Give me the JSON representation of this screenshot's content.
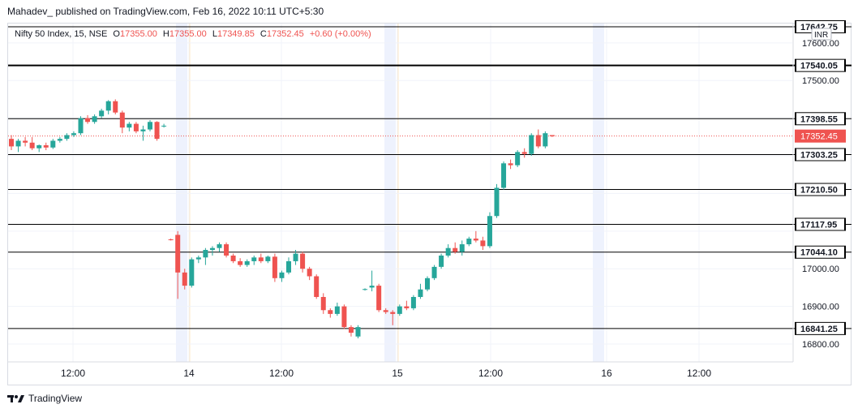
{
  "header": {
    "publisher": "Mahadev_ published on TradingView.com, Feb 16, 2022 10:11 UTC+5:30"
  },
  "legend": {
    "symbol": "Nifty 50 Index, 15, NSE",
    "o_label": "O",
    "o_value": "17355.00",
    "h_label": "H",
    "h_value": "17355.00",
    "l_label": "L",
    "l_value": "17349.85",
    "c_label": "C",
    "c_value": "17352.45",
    "change": "+0.60 (+0.00%)"
  },
  "currency": "INR",
  "footer": {
    "brand": "TradingView"
  },
  "colors": {
    "up": "#26a69a",
    "down": "#ef5350",
    "line": "#000000",
    "text": "#131722"
  },
  "chart_data": {
    "type": "candlestick",
    "y_ticks": [
      17600.0,
      17500.0,
      17400.0,
      17300.0,
      17200.0,
      17100.0,
      17000.0,
      16900.0,
      16800.0
    ],
    "y_tick_labels": [
      "17600.00",
      "17500.00",
      "17000.00",
      "16900.00",
      "16800.00"
    ],
    "ylim": [
      16770,
      17680
    ],
    "x_tick_labels": [
      "12:00",
      "14",
      "12:00",
      "15",
      "12:00",
      "16",
      "12:00"
    ],
    "horizontal_levels": [
      {
        "value": 17642.75,
        "label": "17642.75"
      },
      {
        "value": 17540.05,
        "label": "17540.05"
      },
      {
        "value": 17398.55,
        "label": "17398.55"
      },
      {
        "value": 17303.25,
        "label": "17303.25"
      },
      {
        "value": 17210.5,
        "label": "17210.50"
      },
      {
        "value": 17117.95,
        "label": "17117.95"
      },
      {
        "value": 17044.1,
        "label": "17044.10"
      },
      {
        "value": 16841.25,
        "label": "16841.25"
      }
    ],
    "last_price": {
      "value": 17352.45,
      "label": "17352.45"
    },
    "session_markers": [
      "14",
      "15",
      "16"
    ],
    "candles": [
      {
        "o": 17345,
        "h": 17355,
        "l": 17315,
        "c": 17325
      },
      {
        "o": 17325,
        "h": 17345,
        "l": 17310,
        "c": 17340
      },
      {
        "o": 17340,
        "h": 17350,
        "l": 17325,
        "c": 17335
      },
      {
        "o": 17335,
        "h": 17350,
        "l": 17315,
        "c": 17320
      },
      {
        "o": 17320,
        "h": 17330,
        "l": 17310,
        "c": 17328
      },
      {
        "o": 17328,
        "h": 17335,
        "l": 17315,
        "c": 17322
      },
      {
        "o": 17322,
        "h": 17345,
        "l": 17318,
        "c": 17340
      },
      {
        "o": 17340,
        "h": 17350,
        "l": 17335,
        "c": 17345
      },
      {
        "o": 17345,
        "h": 17360,
        "l": 17340,
        "c": 17355
      },
      {
        "o": 17355,
        "h": 17365,
        "l": 17350,
        "c": 17360
      },
      {
        "o": 17360,
        "h": 17405,
        "l": 17355,
        "c": 17400
      },
      {
        "o": 17400,
        "h": 17408,
        "l": 17385,
        "c": 17390
      },
      {
        "o": 17390,
        "h": 17410,
        "l": 17385,
        "c": 17405
      },
      {
        "o": 17405,
        "h": 17425,
        "l": 17400,
        "c": 17420
      },
      {
        "o": 17420,
        "h": 17448,
        "l": 17410,
        "c": 17445
      },
      {
        "o": 17445,
        "h": 17450,
        "l": 17410,
        "c": 17415
      },
      {
        "o": 17415,
        "h": 17420,
        "l": 17360,
        "c": 17375
      },
      {
        "o": 17375,
        "h": 17390,
        "l": 17365,
        "c": 17385
      },
      {
        "o": 17385,
        "h": 17390,
        "l": 17360,
        "c": 17365
      },
      {
        "o": 17365,
        "h": 17380,
        "l": 17340,
        "c": 17370
      },
      {
        "o": 17370,
        "h": 17395,
        "l": 17365,
        "c": 17390
      },
      {
        "o": 17390,
        "h": 17392,
        "l": 17340,
        "c": 17345
      },
      {
        "o": 17380,
        "h": 17385,
        "l": 17375,
        "c": 17380
      },
      {
        "o": 17078,
        "h": 17080,
        "l": 17075,
        "c": 17077
      },
      {
        "o": 17090,
        "h": 17100,
        "l": 16920,
        "c": 16990
      },
      {
        "o": 16990,
        "h": 17000,
        "l": 16945,
        "c": 16955
      },
      {
        "o": 16955,
        "h": 17030,
        "l": 16950,
        "c": 17025
      },
      {
        "o": 17025,
        "h": 17035,
        "l": 17015,
        "c": 17030
      },
      {
        "o": 17030,
        "h": 17055,
        "l": 17010,
        "c": 17050
      },
      {
        "o": 17050,
        "h": 17060,
        "l": 17035,
        "c": 17055
      },
      {
        "o": 17055,
        "h": 17070,
        "l": 17045,
        "c": 17065
      },
      {
        "o": 17065,
        "h": 17070,
        "l": 17030,
        "c": 17035
      },
      {
        "o": 17035,
        "h": 17040,
        "l": 17015,
        "c": 17020
      },
      {
        "o": 17020,
        "h": 17028,
        "l": 17005,
        "c": 17010
      },
      {
        "o": 17010,
        "h": 17025,
        "l": 17005,
        "c": 17020
      },
      {
        "o": 17020,
        "h": 17035,
        "l": 17010,
        "c": 17030
      },
      {
        "o": 17030,
        "h": 17040,
        "l": 17015,
        "c": 17020
      },
      {
        "o": 17020,
        "h": 17035,
        "l": 17015,
        "c": 17032
      },
      {
        "o": 17032,
        "h": 17040,
        "l": 16965,
        "c": 16975
      },
      {
        "o": 16975,
        "h": 16995,
        "l": 16965,
        "c": 16990
      },
      {
        "o": 16990,
        "h": 17030,
        "l": 16985,
        "c": 17020
      },
      {
        "o": 17020,
        "h": 17050,
        "l": 17010,
        "c": 17040
      },
      {
        "o": 17040,
        "h": 17045,
        "l": 16990,
        "c": 17000
      },
      {
        "o": 17000,
        "h": 17005,
        "l": 16970,
        "c": 16980
      },
      {
        "o": 16980,
        "h": 16985,
        "l": 16920,
        "c": 16925
      },
      {
        "o": 16925,
        "h": 16935,
        "l": 16880,
        "c": 16890
      },
      {
        "o": 16890,
        "h": 16895,
        "l": 16870,
        "c": 16880
      },
      {
        "o": 16880,
        "h": 16910,
        "l": 16875,
        "c": 16900
      },
      {
        "o": 16900,
        "h": 16905,
        "l": 16840,
        "c": 16845
      },
      {
        "o": 16845,
        "h": 16850,
        "l": 16820,
        "c": 16830
      },
      {
        "o": 16820,
        "h": 16850,
        "l": 16815,
        "c": 16845
      },
      {
        "o": 16945,
        "h": 16948,
        "l": 16942,
        "c": 16946
      },
      {
        "o": 16950,
        "h": 16995,
        "l": 16940,
        "c": 16955
      },
      {
        "o": 16955,
        "h": 16960,
        "l": 16885,
        "c": 16890
      },
      {
        "o": 16890,
        "h": 16895,
        "l": 16880,
        "c": 16885
      },
      {
        "o": 16885,
        "h": 16890,
        "l": 16850,
        "c": 16880
      },
      {
        "o": 16880,
        "h": 16905,
        "l": 16875,
        "c": 16900
      },
      {
        "o": 16900,
        "h": 16915,
        "l": 16890,
        "c": 16895
      },
      {
        "o": 16895,
        "h": 16930,
        "l": 16890,
        "c": 16925
      },
      {
        "o": 16925,
        "h": 16960,
        "l": 16920,
        "c": 16945
      },
      {
        "o": 16945,
        "h": 16980,
        "l": 16940,
        "c": 16975
      },
      {
        "o": 16975,
        "h": 17010,
        "l": 16970,
        "c": 17005
      },
      {
        "o": 17005,
        "h": 17040,
        "l": 17000,
        "c": 17035
      },
      {
        "o": 17035,
        "h": 17065,
        "l": 17030,
        "c": 17055
      },
      {
        "o": 17055,
        "h": 17070,
        "l": 17040,
        "c": 17045
      },
      {
        "o": 17045,
        "h": 17075,
        "l": 17035,
        "c": 17065
      },
      {
        "o": 17065,
        "h": 17085,
        "l": 17060,
        "c": 17080
      },
      {
        "o": 17080,
        "h": 17100,
        "l": 17070,
        "c": 17075
      },
      {
        "o": 17075,
        "h": 17085,
        "l": 17050,
        "c": 17060
      },
      {
        "o": 17060,
        "h": 17150,
        "l": 17055,
        "c": 17140
      },
      {
        "o": 17140,
        "h": 17225,
        "l": 17135,
        "c": 17215
      },
      {
        "o": 17215,
        "h": 17285,
        "l": 17210,
        "c": 17280
      },
      {
        "o": 17280,
        "h": 17290,
        "l": 17265,
        "c": 17275
      },
      {
        "o": 17275,
        "h": 17315,
        "l": 17270,
        "c": 17310
      },
      {
        "o": 17310,
        "h": 17320,
        "l": 17295,
        "c": 17305
      },
      {
        "o": 17305,
        "h": 17360,
        "l": 17300,
        "c": 17355
      },
      {
        "o": 17355,
        "h": 17370,
        "l": 17320,
        "c": 17325
      },
      {
        "o": 17325,
        "h": 17365,
        "l": 17320,
        "c": 17360
      },
      {
        "o": 17355,
        "h": 17355,
        "l": 17350,
        "c": 17352
      }
    ]
  }
}
